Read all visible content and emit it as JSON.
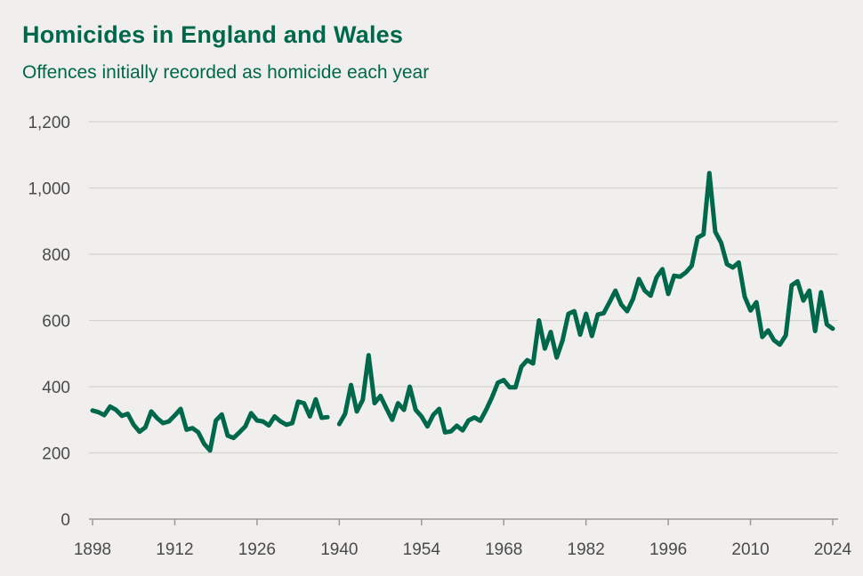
{
  "chart_data": {
    "type": "line",
    "title": "Homicides in England and Wales",
    "subtitle": "Offences initially recorded as homicide each year",
    "xlabel": "",
    "ylabel": "",
    "ylim": [
      0,
      1200
    ],
    "xlim": [
      1898,
      2024
    ],
    "yticks": [
      0,
      200,
      400,
      600,
      800,
      1000,
      1200
    ],
    "ytick_labels": [
      "0",
      "200",
      "400",
      "600",
      "800",
      "1,000",
      "1,200"
    ],
    "xticks": [
      1898,
      1912,
      1926,
      1940,
      1954,
      1968,
      1982,
      1996,
      2010,
      2024
    ],
    "xtick_labels": [
      "1898",
      "1912",
      "1926",
      "1940",
      "1954",
      "1968",
      "1982",
      "1996",
      "2010",
      "2024"
    ],
    "grid": true,
    "color": "#00684a",
    "series": [
      {
        "name": "Homicides",
        "segments": [
          [
            [
              1898,
              328
            ],
            [
              1899,
              323
            ],
            [
              1900,
              314
            ],
            [
              1901,
              340
            ],
            [
              1902,
              330
            ],
            [
              1903,
              312
            ],
            [
              1904,
              318
            ],
            [
              1905,
              285
            ],
            [
              1906,
              264
            ],
            [
              1907,
              277
            ],
            [
              1908,
              325
            ],
            [
              1909,
              305
            ],
            [
              1910,
              290
            ],
            [
              1911,
              295
            ],
            [
              1912,
              313
            ],
            [
              1913,
              333
            ],
            [
              1914,
              270
            ],
            [
              1915,
              275
            ],
            [
              1916,
              262
            ],
            [
              1917,
              227
            ],
            [
              1918,
              207
            ],
            [
              1919,
              298
            ],
            [
              1920,
              316
            ],
            [
              1921,
              252
            ],
            [
              1922,
              245
            ],
            [
              1923,
              262
            ],
            [
              1924,
              280
            ],
            [
              1925,
              320
            ],
            [
              1926,
              298
            ],
            [
              1927,
              295
            ],
            [
              1928,
              283
            ],
            [
              1929,
              310
            ],
            [
              1930,
              295
            ],
            [
              1931,
              285
            ],
            [
              1932,
              290
            ],
            [
              1933,
              355
            ],
            [
              1934,
              350
            ],
            [
              1935,
              310
            ],
            [
              1936,
              362
            ],
            [
              1937,
              306
            ],
            [
              1938,
              308
            ]
          ],
          [
            [
              1940,
              287
            ],
            [
              1941,
              318
            ],
            [
              1942,
              405
            ],
            [
              1943,
              325
            ],
            [
              1944,
              360
            ],
            [
              1945,
              495
            ],
            [
              1946,
              350
            ],
            [
              1947,
              372
            ],
            [
              1948,
              335
            ],
            [
              1949,
              300
            ],
            [
              1950,
              350
            ],
            [
              1951,
              330
            ],
            [
              1952,
              400
            ],
            [
              1953,
              330
            ],
            [
              1954,
              310
            ],
            [
              1955,
              280
            ],
            [
              1956,
              315
            ],
            [
              1957,
              333
            ],
            [
              1958,
              262
            ],
            [
              1959,
              265
            ],
            [
              1960,
              282
            ],
            [
              1961,
              268
            ],
            [
              1962,
              298
            ],
            [
              1963,
              307
            ],
            [
              1964,
              297
            ],
            [
              1965,
              330
            ],
            [
              1966,
              368
            ],
            [
              1967,
              412
            ],
            [
              1968,
              420
            ],
            [
              1969,
              398
            ],
            [
              1970,
              398
            ],
            [
              1971,
              460
            ],
            [
              1972,
              480
            ],
            [
              1973,
              470
            ],
            [
              1974,
              600
            ],
            [
              1975,
              515
            ],
            [
              1976,
              565
            ],
            [
              1977,
              488
            ],
            [
              1978,
              540
            ],
            [
              1979,
              620
            ],
            [
              1980,
              628
            ],
            [
              1981,
              557
            ],
            [
              1982,
              620
            ],
            [
              1983,
              553
            ],
            [
              1984,
              618
            ],
            [
              1985,
              622
            ],
            [
              1986,
              655
            ],
            [
              1987,
              690
            ],
            [
              1988,
              648
            ],
            [
              1989,
              628
            ],
            [
              1990,
              665
            ],
            [
              1991,
              725
            ],
            [
              1992,
              690
            ],
            [
              1993,
              675
            ],
            [
              1994,
              730
            ],
            [
              1995,
              755
            ],
            [
              1996,
              680
            ],
            [
              1997,
              735
            ],
            [
              1998,
              732
            ],
            [
              1999,
              745
            ],
            [
              2000,
              765
            ],
            [
              2001,
              850
            ],
            [
              2002,
              860
            ],
            [
              2003,
              1045
            ],
            [
              2004,
              868
            ],
            [
              2005,
              835
            ],
            [
              2006,
              770
            ],
            [
              2007,
              760
            ],
            [
              2008,
              775
            ],
            [
              2009,
              672
            ],
            [
              2010,
              630
            ],
            [
              2011,
              655
            ],
            [
              2012,
              550
            ],
            [
              2013,
              570
            ],
            [
              2014,
              540
            ],
            [
              2015,
              527
            ],
            [
              2016,
              555
            ],
            [
              2017,
              706
            ],
            [
              2018,
              718
            ],
            [
              2019,
              660
            ],
            [
              2020,
              690
            ],
            [
              2021,
              568
            ],
            [
              2022,
              685
            ],
            [
              2023,
              588
            ],
            [
              2024,
              575
            ]
          ]
        ]
      }
    ]
  }
}
